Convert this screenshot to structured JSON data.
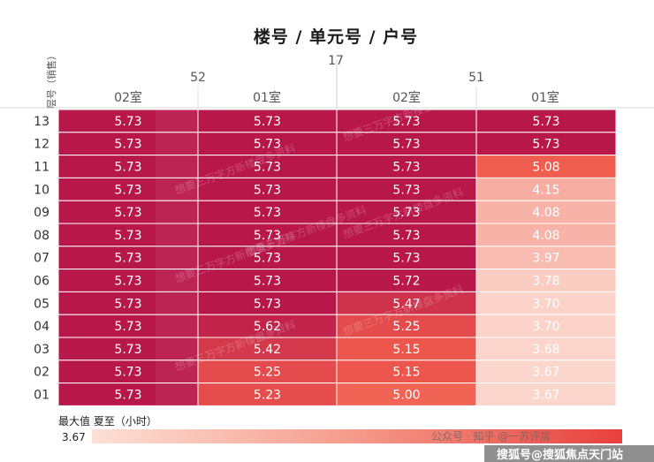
{
  "chart_data": {
    "type": "heatmap",
    "title": "楼号 / 单元号 / 户号",
    "row_axis_title": "层号（销售）",
    "building": "17",
    "units": [
      {
        "unit": "52",
        "rooms": [
          "02室",
          "01室"
        ]
      },
      {
        "unit": "51",
        "rooms": [
          "02室",
          "01室"
        ]
      }
    ],
    "columns": [
      "52-02室",
      "52-01室",
      "51-02室",
      "51-01室"
    ],
    "rows": [
      "13",
      "12",
      "11",
      "10",
      "09",
      "08",
      "07",
      "06",
      "05",
      "04",
      "03",
      "02",
      "01"
    ],
    "values": [
      [
        5.73,
        5.73,
        5.73,
        5.73
      ],
      [
        5.73,
        5.73,
        5.73,
        5.73
      ],
      [
        5.73,
        5.73,
        5.73,
        5.08
      ],
      [
        5.73,
        5.73,
        5.73,
        4.15
      ],
      [
        5.73,
        5.73,
        5.73,
        4.08
      ],
      [
        5.73,
        5.73,
        5.73,
        4.08
      ],
      [
        5.73,
        5.73,
        5.73,
        3.97
      ],
      [
        5.73,
        5.73,
        5.72,
        3.78
      ],
      [
        5.73,
        5.73,
        5.47,
        3.7
      ],
      [
        5.73,
        5.62,
        5.25,
        3.7
      ],
      [
        5.73,
        5.42,
        5.15,
        3.68
      ],
      [
        5.73,
        5.25,
        5.15,
        3.67
      ],
      [
        5.73,
        5.23,
        5.0,
        3.67
      ]
    ],
    "value_range": [
      3.67,
      5.73
    ],
    "legend": {
      "title": "最大值 夏至（小时）",
      "min_label": "3.67"
    },
    "colors": {
      "low": "#fbd6cc",
      "mid": "#ef5a4c",
      "high": "#b8174a",
      "grid_line": "#ffffff",
      "divider": "#cccccc"
    }
  },
  "watermarks": {
    "diagonal": "想要三万字方新楼盘多资料",
    "platform": "公众号 · 知乎 @一苏评房",
    "source": "搜狐号@搜狐焦点天门站"
  }
}
